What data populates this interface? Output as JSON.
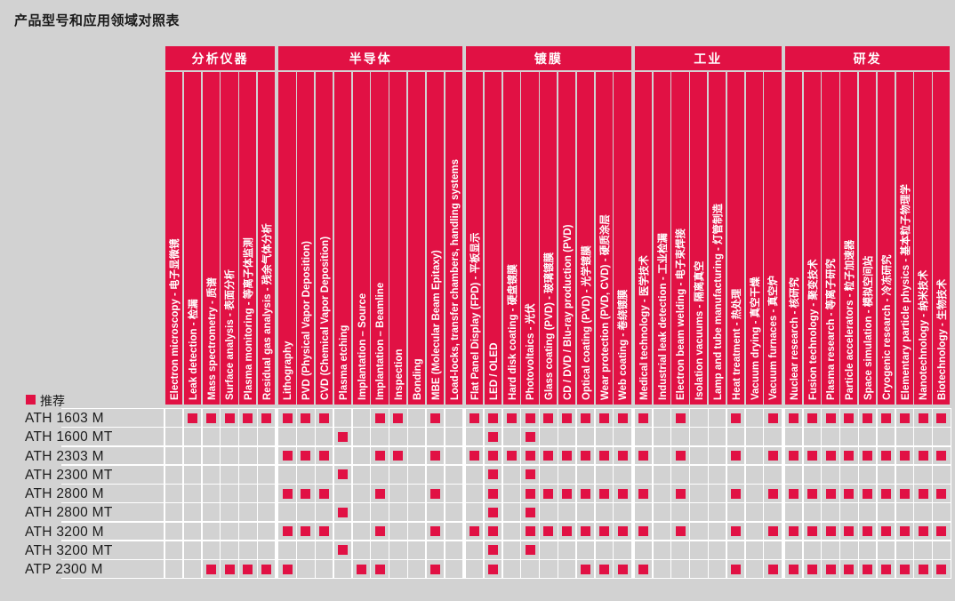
{
  "title": "产品型号和应用领域对照表",
  "legend": {
    "label": "推荐"
  },
  "colors": {
    "red": "#e11144",
    "background": "#d2d2d2",
    "grid": "#ffffff",
    "text": "#1a1a1a"
  },
  "categories": [
    {
      "label": "分析仪器"
    },
    {
      "label": "半导体"
    },
    {
      "label": "镀膜"
    },
    {
      "label": "工业"
    },
    {
      "label": "研发"
    }
  ],
  "columns": [
    {
      "label": "Electron microscopy - 电子显微镜",
      "category": 0
    },
    {
      "label": "Leak detection - 检漏",
      "category": 0
    },
    {
      "label": "Mass spectrometry - 质谱",
      "category": 0
    },
    {
      "label": "Surface analysis - 表面分析",
      "category": 0
    },
    {
      "label": "Plasma monitoring - 等离子体监测",
      "category": 0
    },
    {
      "label": "Residual gas analysis - 残余气体分析",
      "category": 0
    },
    {
      "label": "Lithography",
      "category": 1
    },
    {
      "label": "PVD (Physical Vapor Deposition)",
      "category": 1
    },
    {
      "label": "CVD (Chemical Vapor Deposition)",
      "category": 1
    },
    {
      "label": "Plasma etching",
      "category": 1
    },
    {
      "label": "Implantation – Source",
      "category": 1
    },
    {
      "label": "Implantation – Beamline",
      "category": 1
    },
    {
      "label": "Inspection",
      "category": 1
    },
    {
      "label": "Bonding",
      "category": 1
    },
    {
      "label": "MBE (Molecular Beam Epitaxy)",
      "category": 1
    },
    {
      "label": "Load-locks, transfer chambers, handling systems",
      "category": 1
    },
    {
      "label": "Flat Panel Display (FPD) - 平板显示",
      "category": 2
    },
    {
      "label": "LED / OLED",
      "category": 2
    },
    {
      "label": "Hard disk coating - 硬盘镀膜",
      "category": 2
    },
    {
      "label": "Photovoltaics - 光伏",
      "category": 2
    },
    {
      "label": "Glass coating (PVD) - 玻璃镀膜",
      "category": 2
    },
    {
      "label": "CD / DVD / Blu-ray production (PVD)",
      "category": 2
    },
    {
      "label": "Optical coating (PVD) - 光学镀膜",
      "category": 2
    },
    {
      "label": "Wear protection (PVD, CVD) - 硬质涂层",
      "category": 2
    },
    {
      "label": "Web coating - 卷绕镀膜",
      "category": 2
    },
    {
      "label": "Medical technology - 医学技术",
      "category": 3
    },
    {
      "label": "Industrial leak detection - 工业检漏",
      "category": 3
    },
    {
      "label": "Electron beam welding - 电子束焊接",
      "category": 3
    },
    {
      "label": "Isolation vacuums - 隔离真空",
      "category": 3
    },
    {
      "label": "Lamp and tube manufacturing - 灯管制造",
      "category": 3
    },
    {
      "label": "Heat treatment - 热处理",
      "category": 3
    },
    {
      "label": "Vacuum drying - 真空干燥",
      "category": 3
    },
    {
      "label": "Vacuum furnaces - 真空炉",
      "category": 3
    },
    {
      "label": "Nuclear research - 核研究",
      "category": 4
    },
    {
      "label": "Fusion technology - 聚变技术",
      "category": 4
    },
    {
      "label": "Plasma research - 等离子研究",
      "category": 4
    },
    {
      "label": "Particle accelerators - 粒子加速器",
      "category": 4
    },
    {
      "label": "Space simulation - 模拟空间站",
      "category": 4
    },
    {
      "label": "Cryogenic research - 冷冻研究",
      "category": 4
    },
    {
      "label": "Elementary particle physics - 基本粒子物理学",
      "category": 4
    },
    {
      "label": "Nanotechnology - 纳米技术",
      "category": 4
    },
    {
      "label": "Biotechnology - 生物技术",
      "category": 4
    }
  ],
  "rows": [
    {
      "model": "ATH 1603 M",
      "marks": [
        1,
        2,
        3,
        4,
        5,
        6,
        7,
        8,
        11,
        12,
        14,
        16,
        17,
        18,
        19,
        20,
        21,
        22,
        23,
        24,
        25,
        27,
        30,
        32,
        33,
        34,
        35,
        36,
        37,
        38,
        39,
        40,
        41
      ]
    },
    {
      "model": "ATH 1600 MT",
      "marks": [
        9,
        17,
        19
      ]
    },
    {
      "model": "ATH 2303 M",
      "marks": [
        6,
        7,
        8,
        11,
        12,
        14,
        16,
        17,
        18,
        19,
        20,
        21,
        22,
        23,
        24,
        25,
        27,
        30,
        32,
        33,
        34,
        35,
        36,
        37,
        38,
        39,
        40,
        41
      ]
    },
    {
      "model": "ATH 2300 MT",
      "marks": [
        9,
        17,
        19
      ]
    },
    {
      "model": "ATH 2800 M",
      "marks": [
        6,
        7,
        8,
        11,
        14,
        17,
        19,
        20,
        21,
        22,
        23,
        24,
        25,
        27,
        30,
        32,
        33,
        34,
        35,
        36,
        37,
        38,
        39,
        40,
        41
      ]
    },
    {
      "model": "ATH 2800 MT",
      "marks": [
        9,
        17,
        19
      ]
    },
    {
      "model": "ATH 3200 M",
      "marks": [
        6,
        7,
        8,
        11,
        14,
        16,
        17,
        19,
        20,
        21,
        22,
        23,
        24,
        25,
        27,
        30,
        32,
        33,
        34,
        35,
        36,
        37,
        38,
        39,
        40,
        41
      ]
    },
    {
      "model": "ATH 3200 MT",
      "marks": [
        9,
        17,
        19
      ]
    },
    {
      "model": "ATP 2300 M",
      "marks": [
        2,
        3,
        4,
        5,
        6,
        10,
        11,
        14,
        17,
        22,
        23,
        24,
        25,
        30,
        32,
        33,
        34,
        35,
        36,
        37,
        38,
        39,
        40,
        41
      ]
    }
  ]
}
